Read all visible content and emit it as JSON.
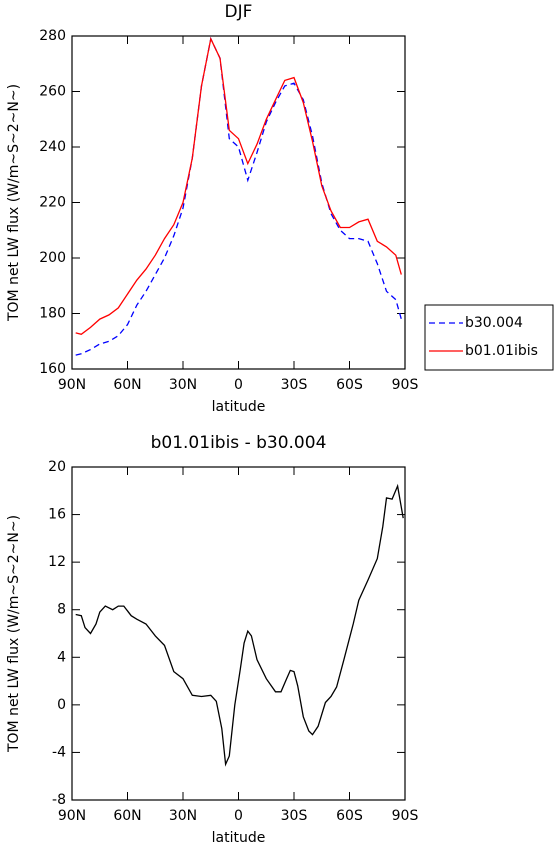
{
  "chart_data": [
    {
      "type": "line",
      "title": "DJF",
      "xlabel": "latitude",
      "ylabel": "TOM net LW flux (W/m~S~2~N~)",
      "x": [
        88,
        85,
        80,
        75,
        70,
        65,
        60,
        55,
        50,
        45,
        40,
        35,
        30,
        25,
        20,
        15,
        10,
        5,
        0,
        -5,
        -10,
        -15,
        -20,
        -25,
        -30,
        -35,
        -40,
        -45,
        -50,
        -55,
        -60,
        -65,
        -70,
        -75,
        -80,
        -85,
        -88
      ],
      "series": [
        {
          "name": "b30.004",
          "color": "#0000ff",
          "dash": "dashed",
          "values": [
            165,
            165.5,
            167,
            169,
            170,
            172,
            176,
            183,
            188,
            194,
            200,
            208,
            218,
            236,
            262,
            279,
            272,
            243,
            240,
            228,
            238,
            249,
            256,
            262,
            263,
            257,
            244,
            227,
            216,
            210,
            207,
            207,
            206,
            198,
            188,
            185,
            178
          ]
        },
        {
          "name": "b01.01ibis",
          "color": "#ff0000",
          "dash": "solid",
          "values": [
            173,
            172.5,
            175,
            178,
            179.5,
            182,
            187,
            192,
            196,
            201,
            207,
            212,
            220,
            236,
            262,
            279,
            272,
            246,
            243,
            234,
            241,
            250,
            257,
            264,
            265,
            256,
            242,
            226,
            217,
            211,
            211,
            213,
            214,
            206,
            204,
            201,
            194
          ]
        }
      ],
      "xlim": [
        90,
        -90
      ],
      "xticks": [
        {
          "value": 90,
          "label": "90N"
        },
        {
          "value": 60,
          "label": "60N"
        },
        {
          "value": 30,
          "label": "30N"
        },
        0,
        {
          "value": -30,
          "label": "30S"
        },
        {
          "value": -60,
          "label": "60S"
        },
        {
          "value": -90,
          "label": "90S"
        }
      ],
      "ylim": [
        160,
        280
      ],
      "yticks": [
        160,
        180,
        200,
        220,
        240,
        260,
        280
      ],
      "legend": "right"
    },
    {
      "type": "line",
      "title": "b01.01ibis - b30.004",
      "xlabel": "latitude",
      "ylabel": "TOM net LW flux (W/m~S~2~N~)",
      "x": [
        88,
        85,
        83,
        80,
        77,
        75,
        72,
        68,
        65,
        62,
        58,
        55,
        50,
        45,
        40,
        35,
        30,
        25,
        20,
        15,
        12,
        9,
        7,
        5,
        2,
        -1,
        -3,
        -5,
        -7,
        -10,
        -15,
        -20,
        -23,
        -26,
        -28,
        -30,
        -32,
        -35,
        -38,
        -40,
        -43,
        -47,
        -50,
        -53,
        -57,
        -62,
        -65,
        -70,
        -75,
        -78,
        -80,
        -83,
        -86,
        -89
      ],
      "series": [
        {
          "name": "b01.01ibis - b30.004",
          "color": "#000000",
          "dash": "solid",
          "values": [
            7.6,
            7.5,
            6.5,
            6,
            6.8,
            7.8,
            8.3,
            8,
            8.3,
            8.3,
            7.5,
            7.2,
            6.8,
            5.8,
            5,
            2.8,
            2.2,
            0.8,
            0.7,
            0.8,
            0.3,
            -2,
            -5,
            -4.3,
            0,
            3,
            5.2,
            6.2,
            5.8,
            3.8,
            2.2,
            1.1,
            1.1,
            2.2,
            2.9,
            2.8,
            1.6,
            -1,
            -2.2,
            -2.5,
            -1.8,
            0.2,
            0.7,
            1.5,
            3.8,
            6.8,
            8.8,
            10.5,
            12.3,
            15,
            17.4,
            17.3,
            18.4,
            15.7
          ]
        }
      ],
      "xlim": [
        90,
        -90
      ],
      "xticks": [
        {
          "value": 90,
          "label": "90N"
        },
        {
          "value": 60,
          "label": "60N"
        },
        {
          "value": 30,
          "label": "30N"
        },
        0,
        {
          "value": -30,
          "label": "30S"
        },
        {
          "value": -60,
          "label": "60S"
        },
        {
          "value": -90,
          "label": "90S"
        }
      ],
      "ylim": [
        -8,
        20
      ],
      "yticks": [
        -8,
        -4,
        0,
        4,
        8,
        12,
        16,
        20
      ]
    }
  ]
}
